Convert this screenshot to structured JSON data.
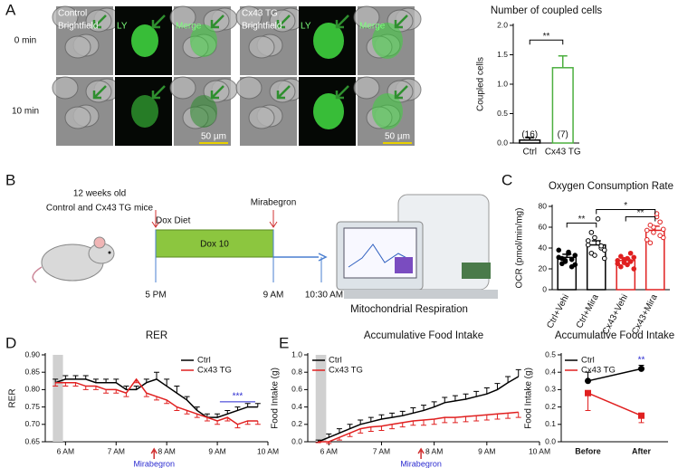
{
  "panel_labels": [
    "A",
    "B",
    "C",
    "D",
    "E"
  ],
  "panel_a": {
    "groups": [
      "Control",
      "Cx43 TG"
    ],
    "channels": [
      "Brightfield",
      "LY",
      "Merge"
    ],
    "times": [
      "0 min",
      "10 min"
    ],
    "scale_bar": "50 µm"
  },
  "panel_b": {
    "mice": [
      "12 weeks old",
      "Control and Cx43 TG mice"
    ],
    "events": [
      "Dox Diet",
      "Mirabegron"
    ],
    "bar_label": "Dox 10",
    "times": [
      "5 PM",
      "9 AM",
      "10:30 AM"
    ],
    "output": "Mitochondrial Respiration"
  },
  "chart_data": [
    {
      "type": "bar",
      "title": "Number of coupled cells",
      "ylabel": "Coupled cells",
      "categories": [
        "Ctrl",
        "Cx43 TG"
      ],
      "values": [
        0.05,
        1.28
      ],
      "errors": [
        0.04,
        0.2
      ],
      "colors": [
        "#000000",
        "#4caf3f"
      ],
      "n_labels": [
        "(16)",
        "(7)"
      ],
      "ylim": [
        0,
        2
      ],
      "yticks": [
        {
          "value": 0,
          "label": "0.0"
        },
        0.5,
        {
          "value": 1,
          "label": "1.0"
        },
        1.5,
        {
          "value": 2,
          "label": "2.0"
        }
      ],
      "significance": [
        {
          "text": "**",
          "from": 0,
          "to": 1,
          "y": 1.75
        }
      ]
    },
    {
      "type": "bar",
      "title": "Oxygen Consumption Rate",
      "ylabel": "OCR (pmol/min/mg)",
      "categories": [
        "Ctrl+Vehi",
        "Ctrl+Mira",
        "Cx43+Vehi",
        "Cx43+Mira"
      ],
      "values": [
        31,
        43,
        28,
        57
      ],
      "errors": [
        3,
        4,
        2,
        4
      ],
      "colors": [
        "#000000",
        "#000000",
        "#e02020",
        "#e02020"
      ],
      "points": [
        [
          31,
          25,
          28,
          35,
          22,
          33,
          38,
          30,
          27,
          36,
          29,
          24
        ],
        [
          43,
          35,
          50,
          68,
          40,
          38,
          47,
          55,
          33,
          45,
          42,
          30
        ],
        [
          28,
          22,
          26,
          30,
          35,
          20,
          25,
          32,
          29,
          24,
          27,
          31
        ],
        [
          57,
          45,
          60,
          70,
          65,
          50,
          48,
          62,
          55,
          73,
          52,
          58
        ]
      ],
      "ylim": [
        0,
        80
      ],
      "yticks": [
        0,
        20,
        40,
        60,
        80
      ],
      "significance": [
        {
          "text": "**",
          "from": 0,
          "to": 1,
          "y": 64
        },
        {
          "text": "*",
          "from": 1,
          "to": 3,
          "y": 77
        },
        {
          "text": "**",
          "from": 2,
          "to": 3,
          "y": 70
        }
      ]
    },
    {
      "type": "line",
      "title": "RER",
      "ylabel": "RER",
      "x": [
        5.8,
        6.0,
        6.2,
        6.4,
        6.6,
        6.8,
        7.0,
        7.2,
        7.4,
        7.6,
        7.8,
        8.0,
        8.2,
        8.4,
        8.6,
        8.8,
        9.0,
        9.2,
        9.4,
        9.6,
        9.8
      ],
      "series": [
        {
          "name": "Ctrl",
          "color": "#000000",
          "values": [
            0.82,
            0.83,
            0.83,
            0.83,
            0.82,
            0.82,
            0.82,
            0.8,
            0.8,
            0.82,
            0.83,
            0.81,
            0.79,
            0.77,
            0.74,
            0.72,
            0.72,
            0.73,
            0.74,
            0.75,
            0.75
          ],
          "errors": [
            0.01,
            0.01,
            0.01,
            0.01,
            0.01,
            0.01,
            0.01,
            0.01,
            0.01,
            0.01,
            0.02,
            0.02,
            0.02,
            0.01,
            0.01,
            0.01,
            0.01,
            0.01,
            0.01,
            0.01,
            0.01
          ]
        },
        {
          "name": "Cx43 TG",
          "color": "#e02020",
          "values": [
            0.82,
            0.82,
            0.82,
            0.81,
            0.81,
            0.8,
            0.8,
            0.79,
            0.83,
            0.79,
            0.78,
            0.77,
            0.75,
            0.74,
            0.73,
            0.72,
            0.71,
            0.72,
            0.7,
            0.71,
            0.71
          ],
          "errors": [
            0.01,
            0.01,
            0.01,
            0.01,
            0.01,
            0.01,
            0.01,
            0.01,
            0.01,
            0.01,
            0.01,
            0.01,
            0.01,
            0.01,
            0.01,
            0.01,
            0.01,
            0.01,
            0.01,
            0.01,
            0.01
          ]
        }
      ],
      "xlim": [
        5.6,
        10
      ],
      "xticks": [
        {
          "value": 6,
          "label": "6 AM"
        },
        {
          "value": 7,
          "label": "7 AM"
        },
        {
          "value": 8,
          "label": "8 AM"
        },
        {
          "value": 9,
          "label": "9 AM"
        },
        {
          "value": 10,
          "label": "10 AM"
        }
      ],
      "ylim": [
        0.65,
        0.9
      ],
      "yticks": [
        0.65,
        {
          "value": 0.7,
          "label": "0.70"
        },
        0.75,
        {
          "value": 0.8,
          "label": "0.80"
        },
        0.85,
        {
          "value": 0.9,
          "label": "0.90"
        }
      ],
      "shaded_x": [
        5.75,
        5.95
      ],
      "arrow": {
        "text": "Mirabegron",
        "x": 7.75
      },
      "annotation": {
        "text": "***",
        "x": [
          9.05,
          9.75
        ],
        "y": 0.765
      }
    },
    {
      "type": "line",
      "title": "Accumulative Food Intake",
      "ylabel": "Food Intake (g)",
      "x": [
        5.8,
        6.0,
        6.2,
        6.4,
        6.6,
        6.8,
        7.0,
        7.2,
        7.4,
        7.6,
        7.8,
        8.0,
        8.2,
        8.4,
        8.6,
        8.8,
        9.0,
        9.2,
        9.4,
        9.6
      ],
      "series": [
        {
          "name": "Ctrl",
          "color": "#000000",
          "values": [
            0.0,
            0.05,
            0.1,
            0.15,
            0.2,
            0.23,
            0.26,
            0.28,
            0.3,
            0.33,
            0.36,
            0.4,
            0.45,
            0.47,
            0.49,
            0.52,
            0.55,
            0.6,
            0.68,
            0.75
          ],
          "errors": [
            0.02,
            0.04,
            0.05,
            0.05,
            0.05,
            0.05,
            0.05,
            0.05,
            0.05,
            0.06,
            0.06,
            0.06,
            0.06,
            0.06,
            0.06,
            0.06,
            0.07,
            0.07,
            0.07,
            0.08
          ]
        },
        {
          "name": "Cx43 TG",
          "color": "#e02020",
          "values": [
            0.0,
            0.0,
            0.05,
            0.1,
            0.15,
            0.17,
            0.18,
            0.2,
            0.22,
            0.24,
            0.25,
            0.26,
            0.28,
            0.28,
            0.29,
            0.3,
            0.31,
            0.32,
            0.33,
            0.34
          ],
          "errors": [
            0.01,
            0.02,
            0.03,
            0.04,
            0.05,
            0.05,
            0.05,
            0.05,
            0.05,
            0.05,
            0.06,
            0.06,
            0.06,
            0.06,
            0.06,
            0.06,
            0.06,
            0.06,
            0.06,
            0.06
          ]
        }
      ],
      "xlim": [
        5.6,
        10
      ],
      "xticks": [
        {
          "value": 6,
          "label": "6 AM"
        },
        {
          "value": 7,
          "label": "7 AM"
        },
        {
          "value": 8,
          "label": "8 AM"
        },
        {
          "value": 9,
          "label": "9 AM"
        },
        {
          "value": 10,
          "label": "10 AM"
        }
      ],
      "ylim": [
        0,
        1
      ],
      "yticks": [
        {
          "value": 0,
          "label": "0.0"
        },
        0.2,
        0.4,
        0.6,
        0.8,
        {
          "value": 1,
          "label": "1.0"
        }
      ],
      "shaded_x": [
        5.75,
        5.95
      ],
      "arrow": {
        "text": "Mirabegron",
        "x": 7.75
      }
    },
    {
      "type": "line",
      "title": "Accumulative Food Intake",
      "ylabel": "Food Intake (g)",
      "categories": [
        "Before",
        "After"
      ],
      "series": [
        {
          "name": "Ctrl",
          "color": "#000000",
          "values": [
            0.35,
            0.42
          ],
          "errors": [
            0.05,
            0.02
          ]
        },
        {
          "name": "Cx43 TG",
          "color": "#e02020",
          "values": [
            0.28,
            0.15
          ],
          "errors": [
            0.1,
            0.04
          ]
        }
      ],
      "ylim": [
        0,
        0.5
      ],
      "yticks": [
        {
          "value": 0,
          "label": "0.0"
        },
        0.1,
        0.2,
        0.3,
        0.4,
        0.5
      ],
      "annotation": {
        "text": "**",
        "category": 1,
        "y": 0.47
      }
    }
  ]
}
